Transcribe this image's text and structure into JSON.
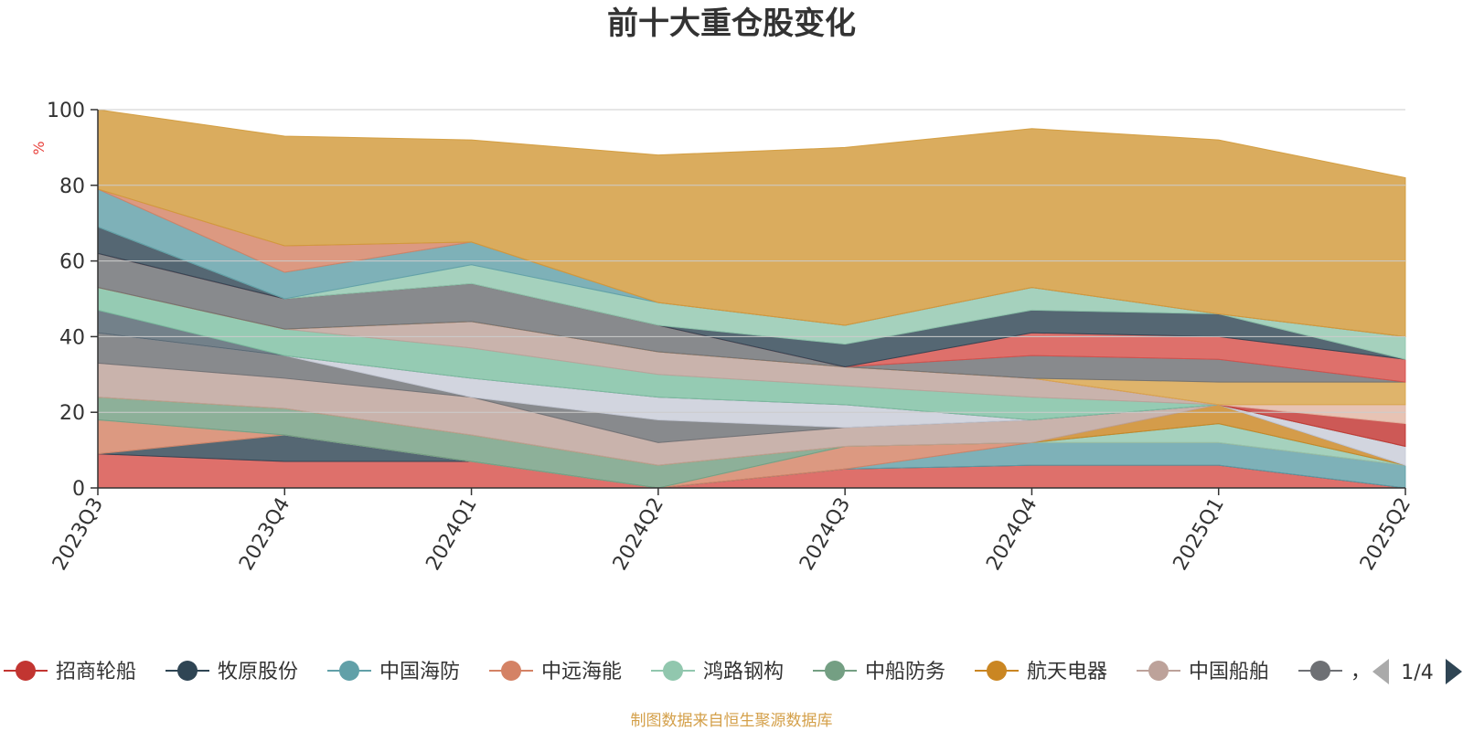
{
  "chart_data": {
    "type": "area",
    "title": "前十大重仓股变化",
    "ylabel": "%",
    "xlabel": "",
    "categories": [
      "2023Q3",
      "2023Q4",
      "2024Q1",
      "2024Q2",
      "2024Q3",
      "2024Q4",
      "2025Q1",
      "2025Q2"
    ],
    "ylim": [
      0,
      100
    ],
    "yticks": [
      0,
      20,
      40,
      60,
      80,
      100
    ],
    "stacked": true,
    "grid": true,
    "legend_position": "bottom",
    "legend_page": "1/4",
    "series": [
      {
        "name": "招商轮船",
        "color": "#d7504b",
        "values": [
          9,
          7,
          7,
          0,
          5,
          6,
          6,
          0
        ]
      },
      {
        "name": "牧原股份",
        "color": "#2f4554",
        "values": [
          0,
          7,
          0,
          0,
          0,
          0,
          0,
          0
        ]
      },
      {
        "name": "中国海防",
        "color": "#61a0a8",
        "values": [
          0,
          0,
          0,
          0,
          0,
          6,
          6,
          6
        ]
      },
      {
        "name": "中远海能",
        "color": "#d48265",
        "values": [
          9,
          0,
          0,
          0,
          6,
          0,
          0,
          0
        ]
      },
      {
        "name": "鸿路钢构",
        "color": "#91c7ae",
        "values": [
          0,
          0,
          0,
          0,
          0,
          0,
          5,
          0
        ]
      },
      {
        "name": "中船防务",
        "color": "#749f83",
        "values": [
          6,
          7,
          7,
          6,
          0,
          0,
          0,
          0
        ]
      },
      {
        "name": "航天电器",
        "color": "#ca8622",
        "values": [
          0,
          0,
          0,
          0,
          0,
          0,
          5,
          0
        ]
      },
      {
        "name": "中国船舶",
        "color": "#bda29a",
        "values": [
          9,
          8,
          10,
          6,
          5,
          6,
          0,
          0
        ]
      },
      {
        "name": "",
        "color": "#6e7074",
        "values": [
          8,
          6,
          0,
          6,
          0,
          0,
          0,
          0
        ]
      },
      {
        "name": "",
        "color": "#c8ccd8",
        "values": [
          0,
          0,
          5,
          6,
          6,
          0,
          0,
          5
        ]
      },
      {
        "name": "",
        "color": "#546570",
        "values": [
          6,
          0,
          0,
          0,
          0,
          0,
          0,
          0
        ]
      },
      {
        "name": "",
        "color": "#7ec0a2",
        "values": [
          6,
          7,
          8,
          6,
          5,
          6,
          0,
          0
        ]
      },
      {
        "name": "",
        "color": "#bda29a",
        "values": [
          0,
          0,
          7,
          6,
          5,
          5,
          0,
          0
        ]
      },
      {
        "name": "",
        "color": "#c23531",
        "values": [
          0,
          0,
          0,
          0,
          0,
          0,
          0,
          6
        ]
      },
      {
        "name": "",
        "color": "#e2b6a3",
        "values": [
          0,
          0,
          0,
          0,
          0,
          0,
          0,
          5
        ]
      },
      {
        "name": "",
        "color": "#d8a44a",
        "values": [
          0,
          0,
          0,
          0,
          0,
          0,
          6,
          6
        ]
      },
      {
        "name": "",
        "color": "#6e7074",
        "values": [
          9,
          8,
          10,
          7,
          0,
          6,
          6,
          0
        ]
      },
      {
        "name": "",
        "color": "#d7504b",
        "values": [
          0,
          0,
          0,
          0,
          0,
          6,
          6,
          6
        ]
      },
      {
        "name": "",
        "color": "#2f4554",
        "values": [
          7,
          0,
          0,
          0,
          6,
          6,
          6,
          0
        ]
      },
      {
        "name": "",
        "color": "#91c7ae",
        "values": [
          0,
          0,
          5,
          6,
          5,
          6,
          0,
          6
        ]
      },
      {
        "name": "",
        "color": "#61a0a8",
        "values": [
          10,
          7,
          6,
          0,
          0,
          0,
          0,
          0
        ]
      },
      {
        "name": "",
        "color": "#d48265",
        "values": [
          0,
          7,
          0,
          0,
          0,
          0,
          0,
          0
        ]
      },
      {
        "name": "",
        "color": "#d29a3a",
        "values": [
          21,
          29,
          27,
          39,
          47,
          42,
          46,
          42
        ]
      }
    ]
  },
  "legend": {
    "items": [
      {
        "name": "招商轮船",
        "color": "#c23531"
      },
      {
        "name": "牧原股份",
        "color": "#2f4554"
      },
      {
        "name": "中国海防",
        "color": "#61a0a8"
      },
      {
        "name": "中远海能",
        "color": "#d48265"
      },
      {
        "name": "鸿路钢构",
        "color": "#91c7ae"
      },
      {
        "name": "中船防务",
        "color": "#749f83"
      },
      {
        "name": "航天电器",
        "color": "#ca8622"
      },
      {
        "name": "中国船舶",
        "color": "#bda29a"
      },
      {
        "name": "，",
        "color": "#6e7074"
      }
    ],
    "page_text": "1/4",
    "prev_icon": "triangle-left-icon",
    "next_icon": "triangle-right-icon"
  },
  "footer": {
    "source": "制图数据来自恒生聚源数据库",
    "source_color": "#d4a04a"
  }
}
